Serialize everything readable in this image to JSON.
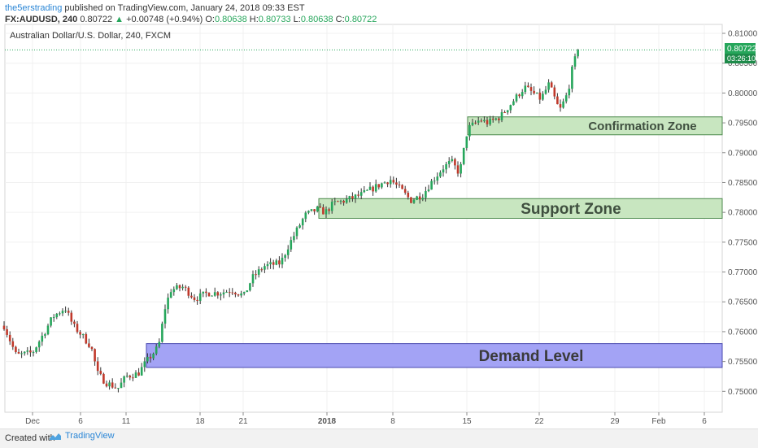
{
  "header": {
    "author": "the5erstrading",
    "published": " published on TradingView.com, January 24, 2018 09:33 EST",
    "symbol": "FX:AUDUSD, 240",
    "last": "0.80722",
    "change": "+0.00748 (+0.94%)",
    "o_label": "O:",
    "o_val": "0.80638",
    "h_label": "H:",
    "h_val": "0.80733",
    "l_label": "L:",
    "l_val": "0.80638",
    "c_label": "C:",
    "c_val": "0.80722"
  },
  "footer": {
    "created": "Created with",
    "brand": "TradingView",
    "logo_icon": "tradingview-logo-icon"
  },
  "chart_data": {
    "type": "candlestick",
    "title": "Australian Dollar/U.S. Dollar, 240, FXCM",
    "ylim": [
      0.7465,
      0.8115
    ],
    "y_ticks": [
      "0.81000",
      "0.80500",
      "0.80000",
      "0.79500",
      "0.79000",
      "0.78500",
      "0.78000",
      "0.77500",
      "0.77000",
      "0.76500",
      "0.76000",
      "0.75500",
      "0.75000"
    ],
    "x_ticks": [
      {
        "label": "Dec",
        "t": 40
      },
      {
        "label": "6",
        "t": 99
      },
      {
        "label": "11",
        "t": 155
      },
      {
        "label": "18",
        "t": 246
      },
      {
        "label": "21",
        "t": 299
      },
      {
        "label": "2018",
        "t": 402
      },
      {
        "label": "8",
        "t": 483
      },
      {
        "label": "15",
        "t": 574
      },
      {
        "label": "22",
        "t": 663
      },
      {
        "label": "29",
        "t": 756
      },
      {
        "label": "Feb",
        "t": 810
      },
      {
        "label": "6",
        "t": 866
      }
    ],
    "price_tag": "0.80722",
    "price_level": 0.80722,
    "countdown": "03:26:10",
    "colors": {
      "up": "#26a65b",
      "down": "#c0392b",
      "wick": "#333333",
      "price_line": "#26a65b"
    },
    "zones": [
      {
        "label": "Confirmation Zone",
        "from_t": 575,
        "low": 0.793,
        "high": 0.796,
        "fill": "#c8e6c0",
        "stroke": "#4c8a4c",
        "text_color": "#3f4f3f"
      },
      {
        "label": "Support Zone",
        "from_t": 392,
        "low": 0.779,
        "high": 0.7823,
        "fill": "#c8e6c0",
        "stroke": "#4c8a4c",
        "text_color": "#3f4f3f"
      },
      {
        "label": "Demand Level",
        "from_t": 180,
        "low": 0.754,
        "high": 0.758,
        "fill": "#a3a3f5",
        "stroke": "#4a4ab0",
        "text_color": "#3a3a3a"
      }
    ],
    "path": [
      [
        5,
        0.761
      ],
      [
        20,
        0.756
      ],
      [
        40,
        0.7565
      ],
      [
        55,
        0.76
      ],
      [
        65,
        0.7625
      ],
      [
        80,
        0.764
      ],
      [
        90,
        0.761
      ],
      [
        100,
        0.7595
      ],
      [
        112,
        0.7575
      ],
      [
        120,
        0.753
      ],
      [
        130,
        0.7515
      ],
      [
        145,
        0.7505
      ],
      [
        155,
        0.7525
      ],
      [
        170,
        0.753
      ],
      [
        180,
        0.755
      ],
      [
        195,
        0.7575
      ],
      [
        203,
        0.764
      ],
      [
        210,
        0.767
      ],
      [
        225,
        0.7675
      ],
      [
        240,
        0.7655
      ],
      [
        255,
        0.7665
      ],
      [
        270,
        0.7665
      ],
      [
        285,
        0.767
      ],
      [
        300,
        0.766
      ],
      [
        310,
        0.769
      ],
      [
        325,
        0.771
      ],
      [
        345,
        0.7715
      ],
      [
        355,
        0.7745
      ],
      [
        365,
        0.777
      ],
      [
        375,
        0.7795
      ],
      [
        390,
        0.7805
      ],
      [
        400,
        0.78
      ],
      [
        410,
        0.7815
      ],
      [
        425,
        0.782
      ],
      [
        445,
        0.783
      ],
      [
        465,
        0.7845
      ],
      [
        480,
        0.7855
      ],
      [
        495,
        0.7835
      ],
      [
        505,
        0.782
      ],
      [
        520,
        0.783
      ],
      [
        530,
        0.785
      ],
      [
        545,
        0.7875
      ],
      [
        555,
        0.7885
      ],
      [
        565,
        0.7865
      ],
      [
        575,
        0.794
      ],
      [
        590,
        0.7955
      ],
      [
        600,
        0.795
      ],
      [
        615,
        0.796
      ],
      [
        630,
        0.7985
      ],
      [
        645,
        0.801
      ],
      [
        655,
        0.8
      ],
      [
        665,
        0.799
      ],
      [
        675,
        0.8015
      ],
      [
        688,
        0.797
      ],
      [
        698,
        0.8
      ],
      [
        705,
        0.805
      ],
      [
        712,
        0.8072
      ]
    ]
  }
}
